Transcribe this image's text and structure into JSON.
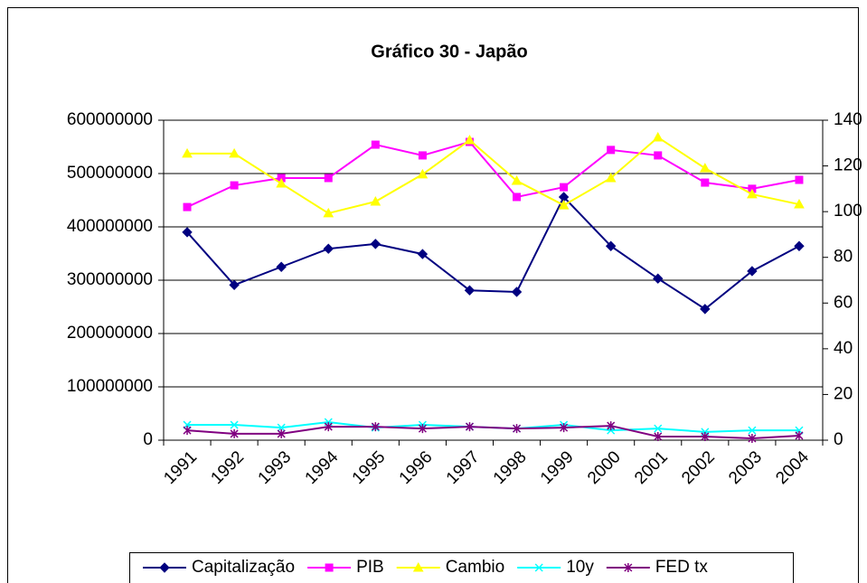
{
  "chart_data": {
    "type": "line",
    "title": "Gráfico 30 - Japão",
    "categories": [
      "1991",
      "1992",
      "1993",
      "1994",
      "1995",
      "1996",
      "1997",
      "1998",
      "1999",
      "2000",
      "2001",
      "2002",
      "2003",
      "2004"
    ],
    "ylim": [
      0,
      600000000
    ],
    "yticks": [
      0,
      100000000,
      200000000,
      300000000,
      400000000,
      500000000,
      600000000
    ],
    "y2lim": [
      0,
      140
    ],
    "y2ticks": [
      0,
      20,
      40,
      60,
      80,
      100,
      120,
      140
    ],
    "grid": true,
    "legend": "bottom",
    "series": [
      {
        "name": "Capitalização",
        "color": "#000080",
        "marker": "diamond",
        "values": [
          390000000,
          291000000,
          325000000,
          359000000,
          368000000,
          349000000,
          281000000,
          278000000,
          456000000,
          364000000,
          303000000,
          246000000,
          317000000,
          364000000
        ]
      },
      {
        "name": "PIB",
        "color": "#ff00ff",
        "marker": "square",
        "axis": "y2",
        "values": [
          102,
          111.5,
          114.7,
          114.7,
          129.3,
          124.6,
          130.5,
          106.4,
          110.7,
          127,
          124.6,
          112.7,
          110,
          113.9
        ]
      },
      {
        "name": "Cambio",
        "color": "#ffff00",
        "marker": "triangle",
        "axis": "y2",
        "values": [
          125.4,
          125.4,
          112.3,
          99.3,
          104.4,
          116.3,
          131.3,
          113.5,
          102.8,
          114.7,
          132.5,
          119,
          107.6,
          103.2
        ]
      },
      {
        "name": "10y",
        "color": "#00ffff",
        "marker": "x",
        "axis": "y2",
        "values": [
          6.7,
          6.7,
          5.5,
          7.9,
          5.5,
          6.7,
          5.9,
          5.1,
          6.7,
          4.3,
          5.1,
          3.6,
          4.3,
          4.3
        ]
      },
      {
        "name": "FED tx",
        "color": "#800080",
        "marker": "star",
        "axis": "y2",
        "values": [
          4.3,
          2.8,
          2.8,
          5.9,
          5.9,
          5.1,
          5.9,
          5.1,
          5.5,
          6.3,
          1.6,
          1.6,
          0.8,
          2
        ]
      }
    ]
  }
}
